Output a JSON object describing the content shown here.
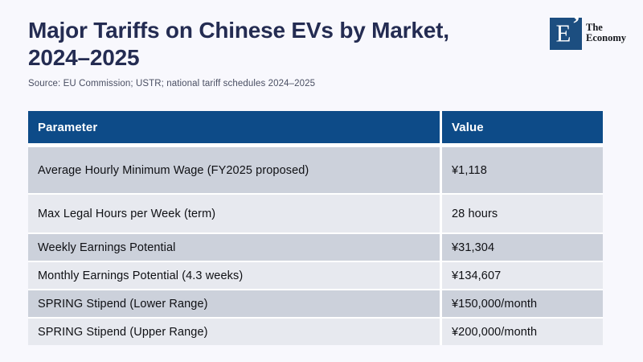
{
  "page": {
    "title_line1": "Major Tariffs on Chinese EVs by Market,",
    "title_line2": "2024–2025",
    "source": "Source: EU Commission; USTR; national tariff schedules 2024–2025"
  },
  "logo": {
    "monogram": "E",
    "quote_mark": "’",
    "name_line1": "The",
    "name_line2": "Economy"
  },
  "table": {
    "headers": {
      "parameter": "Parameter",
      "value": "Value"
    },
    "rows": [
      {
        "parameter": "Average Hourly Minimum Wage (FY2025 proposed)",
        "value": "¥1,118"
      },
      {
        "parameter": "Max Legal Hours per Week (term)",
        "value": "28 hours"
      },
      {
        "parameter": "Weekly Earnings Potential",
        "value": "¥31,304"
      },
      {
        "parameter": "Monthly Earnings Potential (4.3 weeks)",
        "value": "¥134,607"
      },
      {
        "parameter": "SPRING Stipend (Lower Range)",
        "value": "¥150,000/month"
      },
      {
        "parameter": "SPRING Stipend (Upper Range)",
        "value": "¥200,000/month"
      }
    ]
  },
  "colors": {
    "page_bg": "#f8f8fd",
    "title_text": "#242c52",
    "source_text": "#4a4f63",
    "header_bg": "#0d4b88",
    "header_text": "#ffffff",
    "row_dark_bg": "#ccd1db",
    "row_light_bg": "#e7e9ef",
    "row_text": "#0f1014",
    "logo_bg": "#1c4e80",
    "gutter": "#ffffff"
  },
  "chart_data": {
    "type": "table",
    "title": "Major Tariffs on Chinese EVs by Market, 2024–2025",
    "source": "EU Commission; USTR; national tariff schedules 2024–2025",
    "columns": [
      "Parameter",
      "Value"
    ],
    "rows": [
      [
        "Average Hourly Minimum Wage (FY2025 proposed)",
        "¥1,118"
      ],
      [
        "Max Legal Hours per Week (term)",
        "28 hours"
      ],
      [
        "Weekly Earnings Potential",
        "¥31,304"
      ],
      [
        "Monthly Earnings Potential (4.3 weeks)",
        "¥134,607"
      ],
      [
        "SPRING Stipend (Lower Range)",
        "¥150,000/month"
      ],
      [
        "SPRING Stipend (Upper Range)",
        "¥200,000/month"
      ]
    ]
  }
}
